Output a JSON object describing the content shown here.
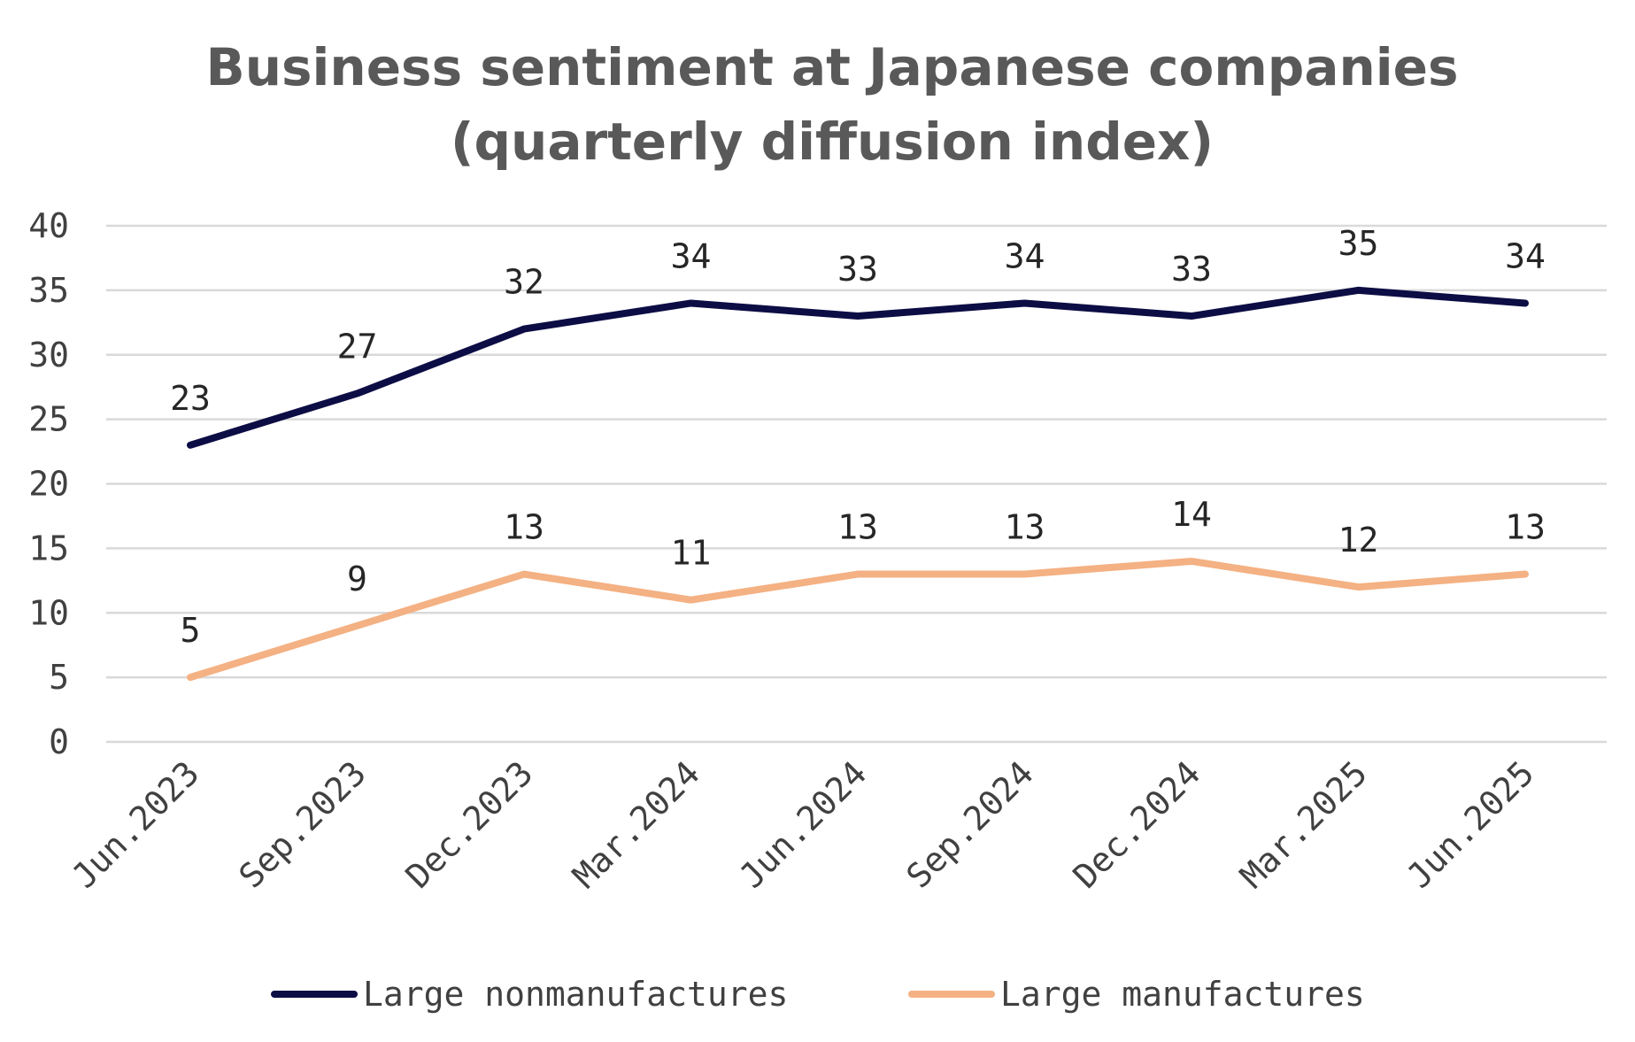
{
  "chart_data": {
    "type": "line",
    "title_line1": "Business sentiment at Japanese companies",
    "title_line2": "(quarterly diffusion index)",
    "xlabel": "",
    "ylabel": "",
    "categories": [
      "Jun.2023",
      "Sep.2023",
      "Dec.2023",
      "Mar.2024",
      "Jun.2024",
      "Sep.2024",
      "Dec.2024",
      "Mar.2025",
      "Jun.2025"
    ],
    "ylim": [
      0,
      40
    ],
    "yticks": [
      "0",
      "5",
      "10",
      "15",
      "20",
      "25",
      "30",
      "35",
      "40"
    ],
    "grid": "horizontal",
    "legend_position": "bottom",
    "series": [
      {
        "name": "Large nonmanufactures",
        "color": "#0d0d45",
        "values": [
          23,
          27,
          32,
          34,
          33,
          34,
          33,
          35,
          34
        ]
      },
      {
        "name": "Large manufactures",
        "color": "#f4b183",
        "values": [
          5,
          9,
          13,
          11,
          13,
          13,
          14,
          12,
          13
        ]
      }
    ]
  }
}
